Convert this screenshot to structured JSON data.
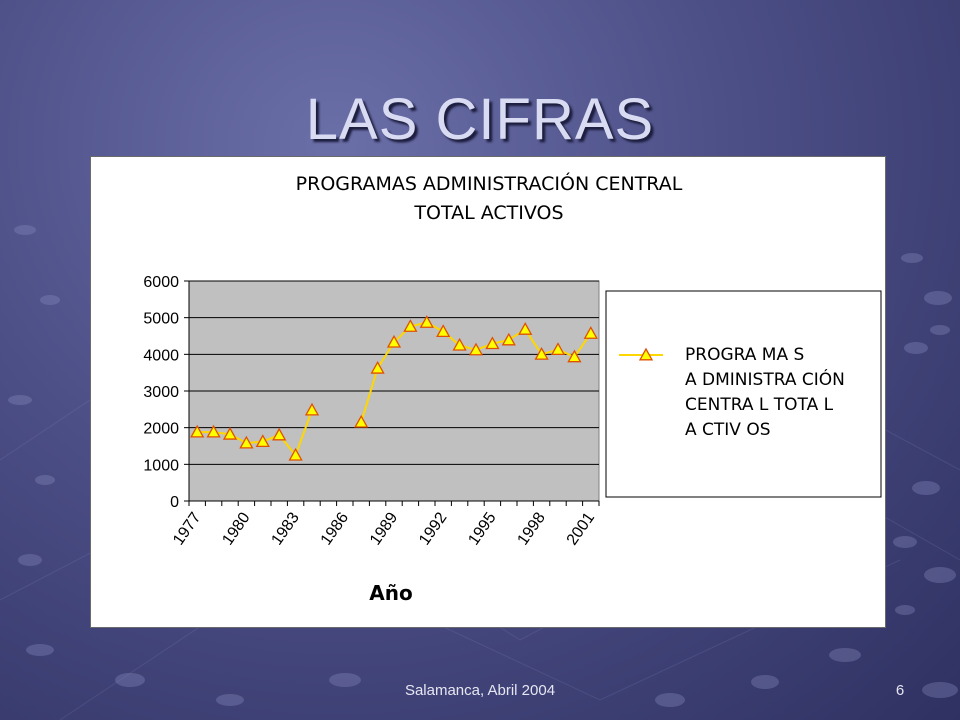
{
  "slide": {
    "title": "LAS CIFRAS",
    "footer": "Salamanca, Abril 2004",
    "page_number": "6"
  },
  "colors": {
    "background": "#4c4f86",
    "plot_area": "#c0c0c0",
    "line": "#ffd700",
    "marker_fill": "#ffff00",
    "marker_edge": "#e05000"
  },
  "chart_data": {
    "type": "line",
    "title_lines": [
      "PROGRAMAS ADMINISTRACIÓN CENTRAL",
      "TOTAL ACTIVOS"
    ],
    "xlabel": "Año",
    "ylabel": "",
    "ylim": [
      0,
      6000
    ],
    "yticks": [
      0,
      1000,
      2000,
      3000,
      4000,
      5000,
      6000
    ],
    "xtick_labels": [
      "1977",
      "1980",
      "1983",
      "1986",
      "1989",
      "1992",
      "1995",
      "1998",
      "2001"
    ],
    "x": [
      1977,
      1978,
      1979,
      1980,
      1981,
      1982,
      1983,
      1984,
      1985,
      1986,
      1987,
      1988,
      1989,
      1990,
      1991,
      1992,
      1993,
      1994,
      1995,
      1996,
      1997,
      1998,
      1999,
      2000,
      2001
    ],
    "grid": "horizontal",
    "legend_position": "right",
    "series": [
      {
        "name_lines": [
          "PROGRA MA S",
          "A DMINISTRA CIÓN",
          "CENTRA L TOTA L",
          "A CTIV OS"
        ],
        "values": [
          1880,
          1880,
          1820,
          1580,
          1620,
          1800,
          1250,
          2480,
          null,
          null,
          2150,
          3620,
          4330,
          4760,
          4870,
          4620,
          4250,
          4120,
          4290,
          4390,
          4680,
          4000,
          4130,
          3930,
          4570
        ]
      }
    ]
  }
}
